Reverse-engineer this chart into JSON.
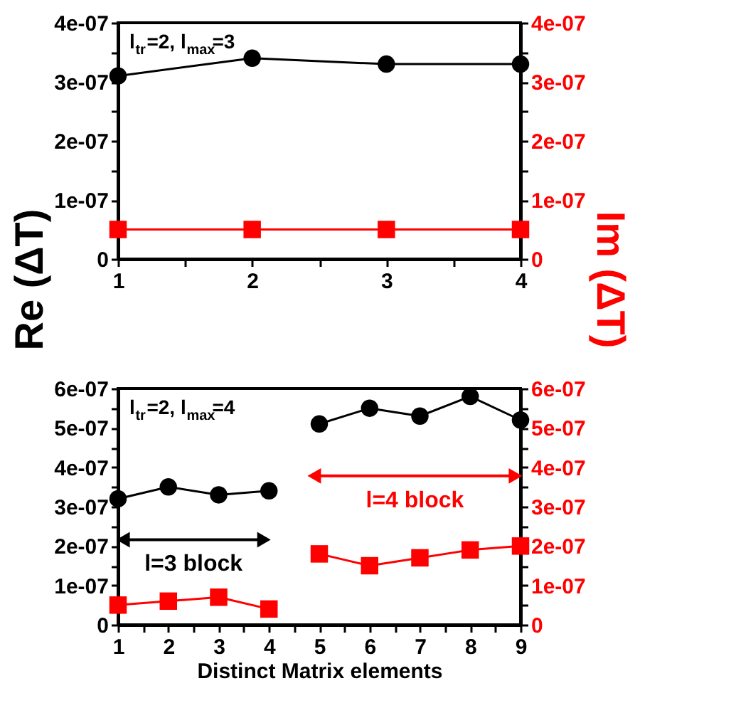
{
  "chart_data": [
    {
      "type": "line",
      "ylabel": "Re (ΔT)",
      "y2label": "Im (ΔT)",
      "x": [
        1,
        2,
        3,
        4
      ],
      "xlim": [
        1,
        4
      ],
      "xticks": [
        1,
        {
          "value": 1.5,
          "label": null
        },
        2,
        {
          "value": 2.5,
          "label": null
        },
        3,
        {
          "value": 3.5,
          "label": null
        },
        4
      ],
      "ylim": [
        0,
        4e-07
      ],
      "yticks": [
        {
          "value": 0,
          "label": "0"
        },
        {
          "value": 5e-08,
          "label": null
        },
        {
          "value": 1e-07,
          "label": "1e-07"
        },
        {
          "value": 1.5e-07,
          "label": null
        },
        {
          "value": 2e-07,
          "label": "2e-07"
        },
        {
          "value": 2.5e-07,
          "label": null
        },
        {
          "value": 3e-07,
          "label": "3e-07"
        },
        {
          "value": 3.5e-07,
          "label": null
        },
        {
          "value": 4e-07,
          "label": "4e-07"
        }
      ],
      "y2lim": [
        0,
        4e-07
      ],
      "y2ticks": [
        {
          "value": 0,
          "label": "0"
        },
        {
          "value": 5e-08,
          "label": null
        },
        {
          "value": 1e-07,
          "label": "1e-07"
        },
        {
          "value": 1.5e-07,
          "label": null
        },
        {
          "value": 2e-07,
          "label": "2e-07"
        },
        {
          "value": 2.5e-07,
          "label": null
        },
        {
          "value": 3e-07,
          "label": "3e-07"
        },
        {
          "value": 3.5e-07,
          "label": null
        },
        {
          "value": 4e-07,
          "label": "4e-07"
        }
      ],
      "grid": false,
      "annotations": [
        "l$_{tr}$=2, l$_{max}$=3"
      ],
      "series": [
        {
          "color": "#000000",
          "marker": "circle",
          "values": [
            3.1e-07,
            3.4e-07,
            3.3e-07,
            3.3e-07
          ]
        },
        {
          "color": "#ff0000",
          "marker": "square",
          "axis": "y2",
          "values": [
            5e-08,
            5e-08,
            5e-08,
            5e-08
          ]
        }
      ]
    },
    {
      "type": "line",
      "xlabel": "Distinct Matrix elements",
      "xlim": [
        1,
        9
      ],
      "xticks": [
        1,
        {
          "value": 1.5,
          "label": null
        },
        2,
        {
          "value": 2.5,
          "label": null
        },
        3,
        {
          "value": 3.5,
          "label": null
        },
        4,
        {
          "value": 4.5,
          "label": null
        },
        5,
        {
          "value": 5.5,
          "label": null
        },
        6,
        {
          "value": 6.5,
          "label": null
        },
        7,
        {
          "value": 7.5,
          "label": null
        },
        8,
        {
          "value": 8.5,
          "label": null
        },
        9
      ],
      "ylim": [
        0,
        6e-07
      ],
      "yticks": [
        {
          "value": 0,
          "label": "0"
        },
        {
          "value": 5e-08,
          "label": null
        },
        {
          "value": 1e-07,
          "label": "1e-07"
        },
        {
          "value": 1.5e-07,
          "label": null
        },
        {
          "value": 2e-07,
          "label": "2e-07"
        },
        {
          "value": 2.5e-07,
          "label": null
        },
        {
          "value": 3e-07,
          "label": "3e-07"
        },
        {
          "value": 3.5e-07,
          "label": null
        },
        {
          "value": 4e-07,
          "label": "4e-07"
        },
        {
          "value": 4.5e-07,
          "label": null
        },
        {
          "value": 5e-07,
          "label": "5e-07"
        },
        {
          "value": 5.5e-07,
          "label": null
        },
        {
          "value": 6e-07,
          "label": "6e-07"
        }
      ],
      "y2lim": [
        0,
        6e-07
      ],
      "y2ticks": [
        {
          "value": 0,
          "label": "0"
        },
        {
          "value": 5e-08,
          "label": null
        },
        {
          "value": 1e-07,
          "label": "1e-07"
        },
        {
          "value": 1.5e-07,
          "label": null
        },
        {
          "value": 2e-07,
          "label": "2e-07"
        },
        {
          "value": 2.5e-07,
          "label": null
        },
        {
          "value": 3e-07,
          "label": "3e-07"
        },
        {
          "value": 3.5e-07,
          "label": null
        },
        {
          "value": 4e-07,
          "label": "4e-07"
        },
        {
          "value": 4.5e-07,
          "label": null
        },
        {
          "value": 5e-07,
          "label": "5e-07"
        },
        {
          "value": 5.5e-07,
          "label": null
        },
        {
          "value": 6e-07,
          "label": "6e-07"
        }
      ],
      "grid": false,
      "annotations": [
        "l$_{tr}$=2, l$_{max}$=4",
        "l=3 block",
        "l=4 block"
      ],
      "series": [
        {
          "color": "#000000",
          "marker": "circle",
          "x": [
            1,
            2,
            3,
            4
          ],
          "values": [
            3.2e-07,
            3.5e-07,
            3.3e-07,
            3.4e-07
          ]
        },
        {
          "color": "#000000",
          "marker": "circle",
          "x": [
            5,
            6,
            7,
            8,
            9
          ],
          "values": [
            5.1e-07,
            5.5e-07,
            5.3e-07,
            5.8e-07,
            5.2e-07
          ]
        },
        {
          "color": "#ff0000",
          "marker": "square",
          "axis": "y2",
          "x": [
            1,
            2,
            3,
            4
          ],
          "values": [
            5e-08,
            6e-08,
            7e-08,
            4e-08
          ]
        },
        {
          "color": "#ff0000",
          "marker": "square",
          "axis": "y2",
          "x": [
            5,
            6,
            7,
            8,
            9
          ],
          "values": [
            1.8e-07,
            1.5e-07,
            1.7e-07,
            1.9e-07,
            2e-07
          ]
        }
      ]
    }
  ]
}
